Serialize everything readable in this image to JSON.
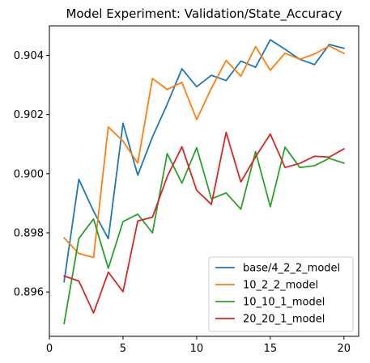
{
  "chart_data": {
    "type": "line",
    "title": "Model Experiment: Validation/State_Accuracy",
    "xlabel": "",
    "ylabel": "",
    "xlim": [
      0,
      21
    ],
    "ylim": [
      0.8945,
      0.905
    ],
    "xticks": [
      0,
      5,
      10,
      15,
      20
    ],
    "yticks": [
      0.896,
      0.898,
      0.9,
      0.902,
      0.904
    ],
    "grid": false,
    "legend_position": "lower-right",
    "x": [
      1,
      2,
      3,
      4,
      5,
      6,
      7,
      8,
      9,
      10,
      11,
      12,
      13,
      14,
      15,
      16,
      17,
      18,
      19,
      20
    ],
    "series": [
      {
        "name": "base/4_2_2_model",
        "color": "#1f77b4",
        "values": [
          0.89635,
          0.89981,
          0.89873,
          0.8978,
          0.90171,
          0.89995,
          0.90124,
          0.90235,
          0.90355,
          0.90294,
          0.90333,
          0.90315,
          0.90381,
          0.9036,
          0.90453,
          0.90421,
          0.90387,
          0.90369,
          0.90437,
          0.90424
        ]
      },
      {
        "name": "10_2_2_model",
        "color": "#ff7f0e",
        "values": [
          0.89783,
          0.8973,
          0.89717,
          0.90158,
          0.9011,
          0.90036,
          0.90322,
          0.90285,
          0.90309,
          0.90183,
          0.90289,
          0.90383,
          0.9033,
          0.9043,
          0.9035,
          0.90408,
          0.90387,
          0.90405,
          0.90432,
          0.90407
        ]
      },
      {
        "name": "10_10_1_model",
        "color": "#2ca02c",
        "values": [
          0.89493,
          0.89781,
          0.89847,
          0.8968,
          0.89838,
          0.89863,
          0.898,
          0.90068,
          0.89968,
          0.90088,
          0.89915,
          0.89935,
          0.8988,
          0.90075,
          0.89888,
          0.9009,
          0.90021,
          0.90027,
          0.90052,
          0.90036
        ]
      },
      {
        "name": "20_20_1_model",
        "color": "#d62728",
        "values": [
          0.89654,
          0.89637,
          0.89529,
          0.89667,
          0.89601,
          0.8984,
          0.89853,
          0.8999,
          0.90091,
          0.89944,
          0.89896,
          0.9014,
          0.89972,
          0.90057,
          0.90134,
          0.90021,
          0.90035,
          0.90059,
          0.90056,
          0.90084
        ]
      }
    ]
  }
}
